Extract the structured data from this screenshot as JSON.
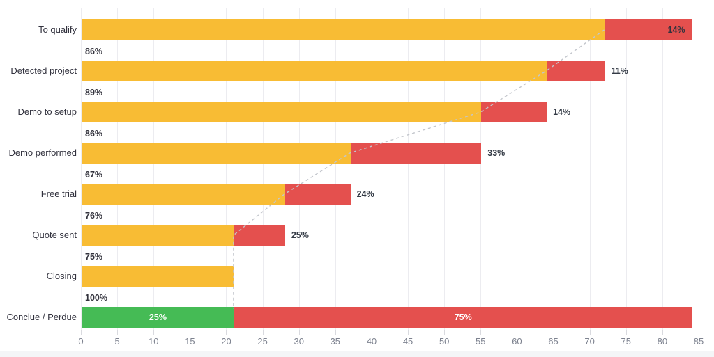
{
  "chart_data": {
    "type": "bar",
    "orientation": "horizontal-stacked-funnel",
    "title": "",
    "xlabel": "",
    "ylabel": "",
    "xlim": [
      0,
      85
    ],
    "x_ticks": [
      0,
      5,
      10,
      15,
      20,
      25,
      30,
      35,
      40,
      45,
      50,
      55,
      60,
      65,
      70,
      75,
      80,
      85
    ],
    "grid": true,
    "legend": "none",
    "colors": {
      "open": "#F8BC34",
      "lost": "#E4504E",
      "won": "#45BB55",
      "grid": "#ECECF0",
      "connector": "#C3C6CC",
      "axis_text": "#7D828F",
      "label_text": "#33333D"
    },
    "categories": [
      "To qualify",
      "Detected project",
      "Demo to setup",
      "Demo performed",
      "Free trial",
      "Quote sent",
      "Closing",
      "Conclue / Perdue"
    ],
    "rows": [
      {
        "label": "To qualify",
        "open": 72,
        "lost": 12,
        "lost_pct": "14%",
        "lost_label_position": "inside-right",
        "retained_pct": "86%"
      },
      {
        "label": "Detected project",
        "open": 64,
        "lost": 8,
        "lost_pct": "11%",
        "lost_label_position": "outside",
        "retained_pct": "89%"
      },
      {
        "label": "Demo to setup",
        "open": 55,
        "lost": 9,
        "lost_pct": "14%",
        "lost_label_position": "outside",
        "retained_pct": "86%"
      },
      {
        "label": "Demo performed",
        "open": 37,
        "lost": 18,
        "lost_pct": "33%",
        "lost_label_position": "outside",
        "retained_pct": "67%"
      },
      {
        "label": "Free trial",
        "open": 28,
        "lost": 9,
        "lost_pct": "24%",
        "lost_label_position": "outside",
        "retained_pct": "76%"
      },
      {
        "label": "Quote sent",
        "open": 21,
        "lost": 7,
        "lost_pct": "25%",
        "lost_label_position": "outside",
        "retained_pct": "75%"
      },
      {
        "label": "Closing",
        "open": 21,
        "lost": 0,
        "lost_pct": "",
        "lost_label_position": "none",
        "retained_pct": "100%"
      },
      {
        "label": "Conclue / Perdue",
        "won": 21,
        "won_pct": "25%",
        "lost": 63,
        "lost_pct": "75%",
        "lost_label_position": "center",
        "outcome_row": true
      }
    ],
    "connector": {
      "style": "dashed",
      "x_values": [
        72,
        64,
        55,
        37,
        28,
        21
      ],
      "drop_to_x": 21
    }
  }
}
